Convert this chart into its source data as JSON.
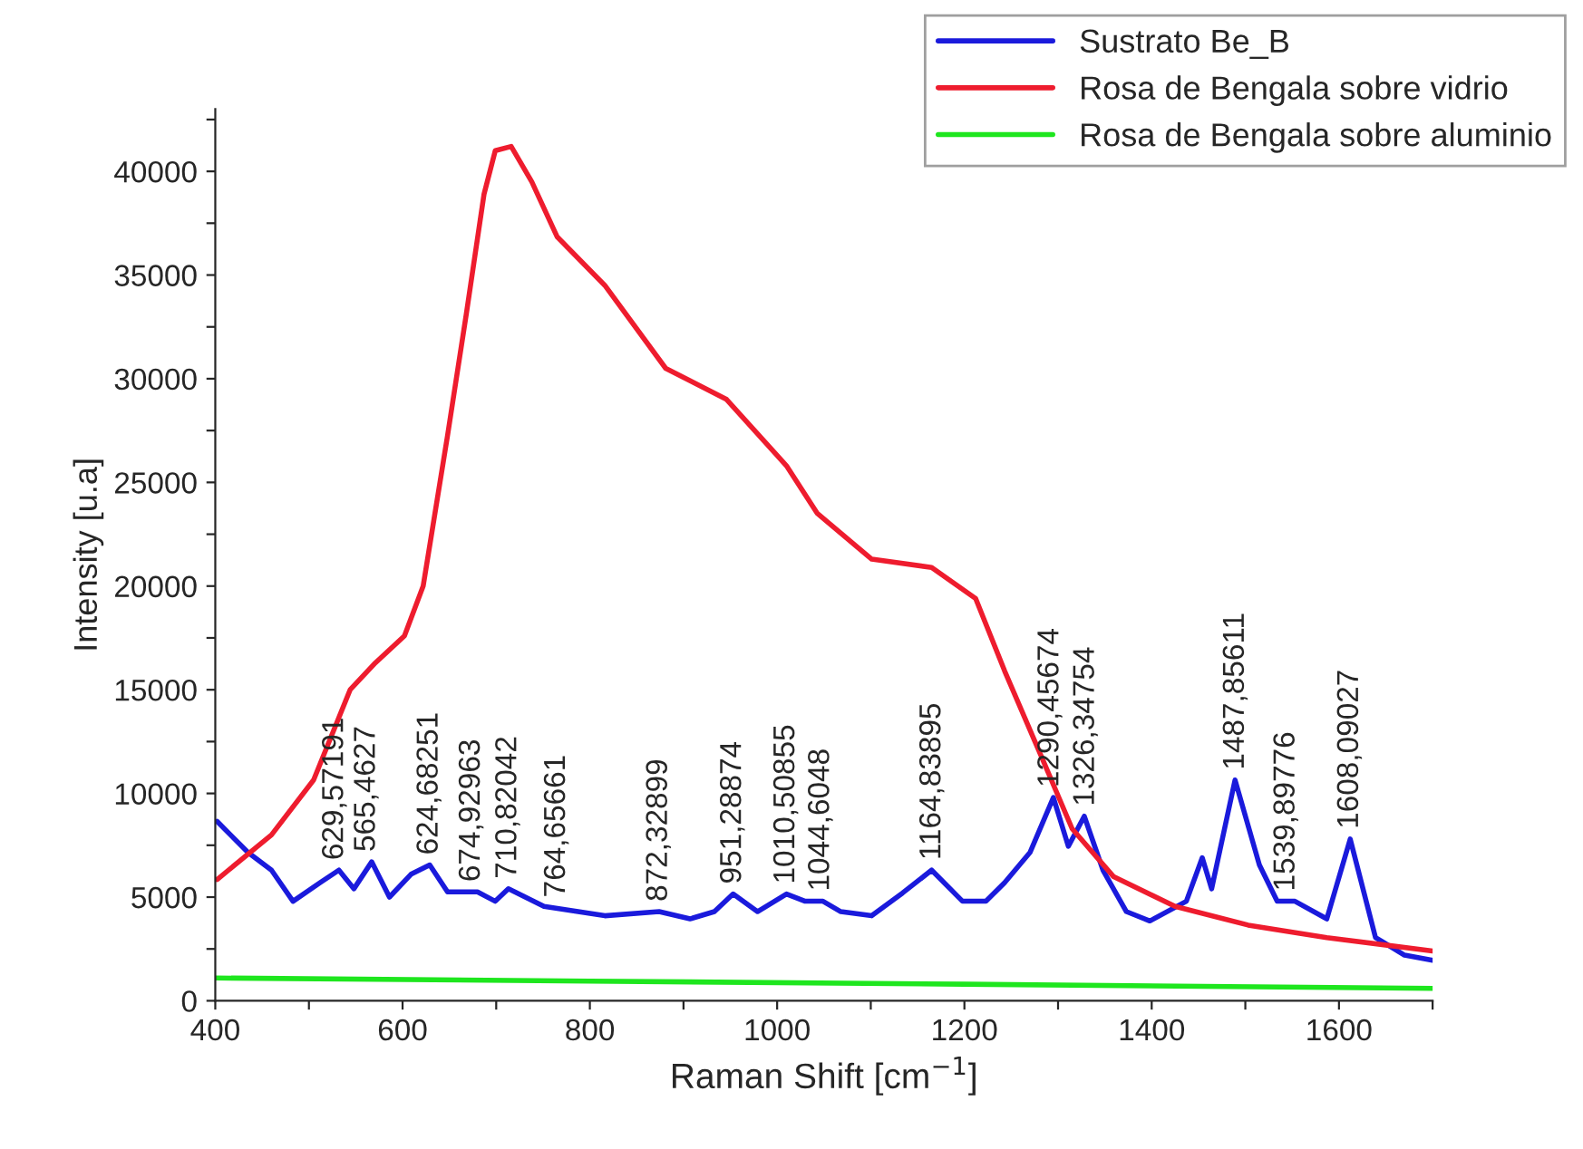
{
  "chart_data": {
    "type": "line",
    "xlabel": "Raman Shift [cm$^{−1}$]",
    "ylabel": "Intensity [u.a]",
    "xlim": [
      400,
      1700
    ],
    "ylim": [
      0,
      43000
    ],
    "xticks": [
      400,
      {
        "value": 500,
        "label": null
      },
      600,
      {
        "value": 700,
        "label": null
      },
      800,
      {
        "value": 900,
        "label": null
      },
      1000,
      {
        "value": 1100,
        "label": null
      },
      1200,
      {
        "value": 1300,
        "label": null
      },
      1400,
      {
        "value": 1500,
        "label": null
      },
      1600,
      {
        "value": 1700,
        "label": null
      }
    ],
    "yticks": [
      0,
      {
        "value": 2500,
        "label": null
      },
      5000,
      {
        "value": 7500,
        "label": null
      },
      10000,
      {
        "value": 12500,
        "label": null
      },
      15000,
      {
        "value": 17500,
        "label": null
      },
      20000,
      {
        "value": 22500,
        "label": null
      },
      25000,
      {
        "value": 27500,
        "label": null
      },
      30000,
      {
        "value": 32500,
        "label": null
      },
      35000,
      {
        "value": 37500,
        "label": null
      },
      40000,
      {
        "value": 42500,
        "label": null
      }
    ],
    "grid": false,
    "legend": "top right",
    "marker": "none",
    "line_style": "solid",
    "series": [
      {
        "name": "Sustrato Be_B",
        "color": "#1a1adc",
        "x": [
          402,
          435,
          460,
          483,
          512,
          532,
          548,
          567,
          586,
          609,
          629,
          648,
          680,
          699,
          713,
          751,
          816,
          874,
          907,
          933,
          953,
          979,
          1010,
          1030,
          1049,
          1068,
          1101,
          1134,
          1165,
          1198,
          1223,
          1243,
          1270,
          1295,
          1311,
          1328,
          1348,
          1373,
          1398,
          1437,
          1454,
          1464,
          1489,
          1515,
          1534,
          1553,
          1587,
          1612,
          1639,
          1670,
          1700
        ],
        "values": [
          8650,
          7150,
          6300,
          4800,
          5700,
          6300,
          5400,
          6700,
          5000,
          6100,
          6550,
          5250,
          5250,
          4800,
          5400,
          4550,
          4100,
          4300,
          3950,
          4300,
          5150,
          4300,
          5150,
          4800,
          4800,
          4300,
          4100,
          5200,
          6300,
          4800,
          4800,
          5700,
          7150,
          9800,
          7450,
          8900,
          6300,
          4300,
          3850,
          4800,
          6900,
          5400,
          10650,
          6550,
          4800,
          4800,
          3950,
          7800,
          3050,
          2200,
          1950
        ]
      },
      {
        "name": "Rosa de Bengala sobre vidrio",
        "color": "#ee1c2e",
        "x": [
          402,
          460,
          505,
          544,
          571,
          602,
          622,
          648,
          668,
          687,
          699,
          716,
          738,
          765,
          816,
          881,
          946,
          1010,
          1043,
          1101,
          1165,
          1212,
          1243,
          1282,
          1315,
          1359,
          1425,
          1503,
          1587,
          1700
        ],
        "values": [
          5850,
          8000,
          10650,
          15000,
          16300,
          17600,
          20000,
          27250,
          33100,
          38900,
          41000,
          41200,
          39500,
          36850,
          34500,
          30500,
          29000,
          25800,
          23500,
          21300,
          20900,
          19400,
          15900,
          11800,
          8300,
          6000,
          4550,
          3650,
          3050,
          2400
        ]
      },
      {
        "name": "Rosa de Bengala sobre aluminio",
        "color": "#1ee61e",
        "x": [
          400,
          800,
          1200,
          1700
        ],
        "values": [
          1100,
          950,
          800,
          600
        ]
      }
    ],
    "annotations": [
      {
        "text": "629,57191",
        "x": 528,
        "y": 6300
      },
      {
        "text": "565,4627",
        "x": 562,
        "y": 6700
      },
      {
        "text": "624,68251",
        "x": 629,
        "y": 6550
      },
      {
        "text": "674,92963",
        "x": 674,
        "y": 5250
      },
      {
        "text": "710,82042",
        "x": 713,
        "y": 5400
      },
      {
        "text": "764,65661",
        "x": 765,
        "y": 4500
      },
      {
        "text": "872,32899",
        "x": 874,
        "y": 4300
      },
      {
        "text": "951,28874",
        "x": 953,
        "y": 5150
      },
      {
        "text": "1010,50855",
        "x": 1010,
        "y": 5150
      },
      {
        "text": "1044,6048",
        "x": 1047,
        "y": 4800
      },
      {
        "text": "1164,83895",
        "x": 1166,
        "y": 6300
      },
      {
        "text": "1290,45674",
        "x": 1292,
        "y": 9800
      },
      {
        "text": "1326,34754",
        "x": 1330,
        "y": 8900
      },
      {
        "text": "1487,85611",
        "x": 1490,
        "y": 10650
      },
      {
        "text": "1539,89776",
        "x": 1544,
        "y": 4800
      },
      {
        "text": "1608,09027",
        "x": 1612,
        "y": 7800
      }
    ]
  }
}
